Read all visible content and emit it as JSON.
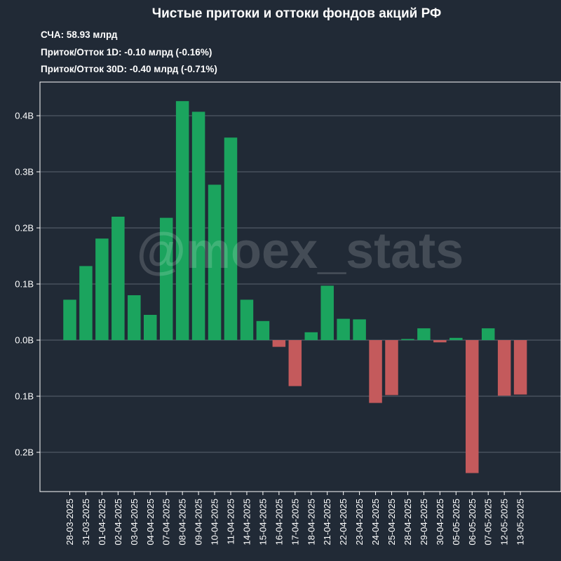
{
  "header": {
    "title": "Чистые притоки и оттоки фондов акций РФ",
    "aum": "СЧА: 58.93 млрд",
    "flow_1d": "Приток/Отток 1D: -0.10 млрд (-0.16%)",
    "flow_30d": "Приток/Отток 30D: -0.40 млрд (-0.71%)"
  },
  "watermark": "@moex_stats",
  "colors": {
    "background": "#212a36",
    "inflow": "#1ba45e",
    "outflow": "#c45a5c",
    "grid": "#5a6470",
    "axis": "#ffffff"
  },
  "chart_data": {
    "type": "bar",
    "title": "Чистые притоки и оттоки фондов акций РФ",
    "xlabel": "",
    "ylabel": "",
    "grid": "horizontal",
    "ylim": [
      -0.27,
      0.46
    ],
    "yticks": [
      {
        "value": 0.4,
        "label": "0.4B"
      },
      {
        "value": 0.3,
        "label": "0.3B"
      },
      {
        "value": 0.2,
        "label": "0.2B"
      },
      {
        "value": 0.1,
        "label": "0.1B"
      },
      {
        "value": 0.0,
        "label": "0.0B"
      },
      {
        "value": -0.1,
        "label": "0.1B"
      },
      {
        "value": -0.2,
        "label": "0.2B"
      }
    ],
    "categories": [
      "28-03-2025",
      "31-03-2025",
      "01-04-2025",
      "02-04-2025",
      "03-04-2025",
      "04-04-2025",
      "07-04-2025",
      "08-04-2025",
      "09-04-2025",
      "10-04-2025",
      "11-04-2025",
      "14-04-2025",
      "15-04-2025",
      "16-04-2025",
      "17-04-2025",
      "18-04-2025",
      "21-04-2025",
      "22-04-2025",
      "23-04-2025",
      "24-04-2025",
      "25-04-2025",
      "28-04-2025",
      "29-04-2025",
      "30-04-2025",
      "05-05-2025",
      "06-05-2025",
      "07-05-2025",
      "12-05-2025",
      "13-05-2025"
    ],
    "values": [
      0.072,
      0.132,
      0.181,
      0.22,
      0.08,
      0.045,
      0.218,
      0.426,
      0.407,
      0.277,
      0.361,
      0.072,
      0.034,
      -0.012,
      -0.082,
      0.014,
      0.097,
      0.038,
      0.037,
      -0.112,
      -0.098,
      0.002,
      0.021,
      -0.004,
      0.004,
      -0.237,
      0.021,
      -0.099,
      -0.097
    ]
  }
}
